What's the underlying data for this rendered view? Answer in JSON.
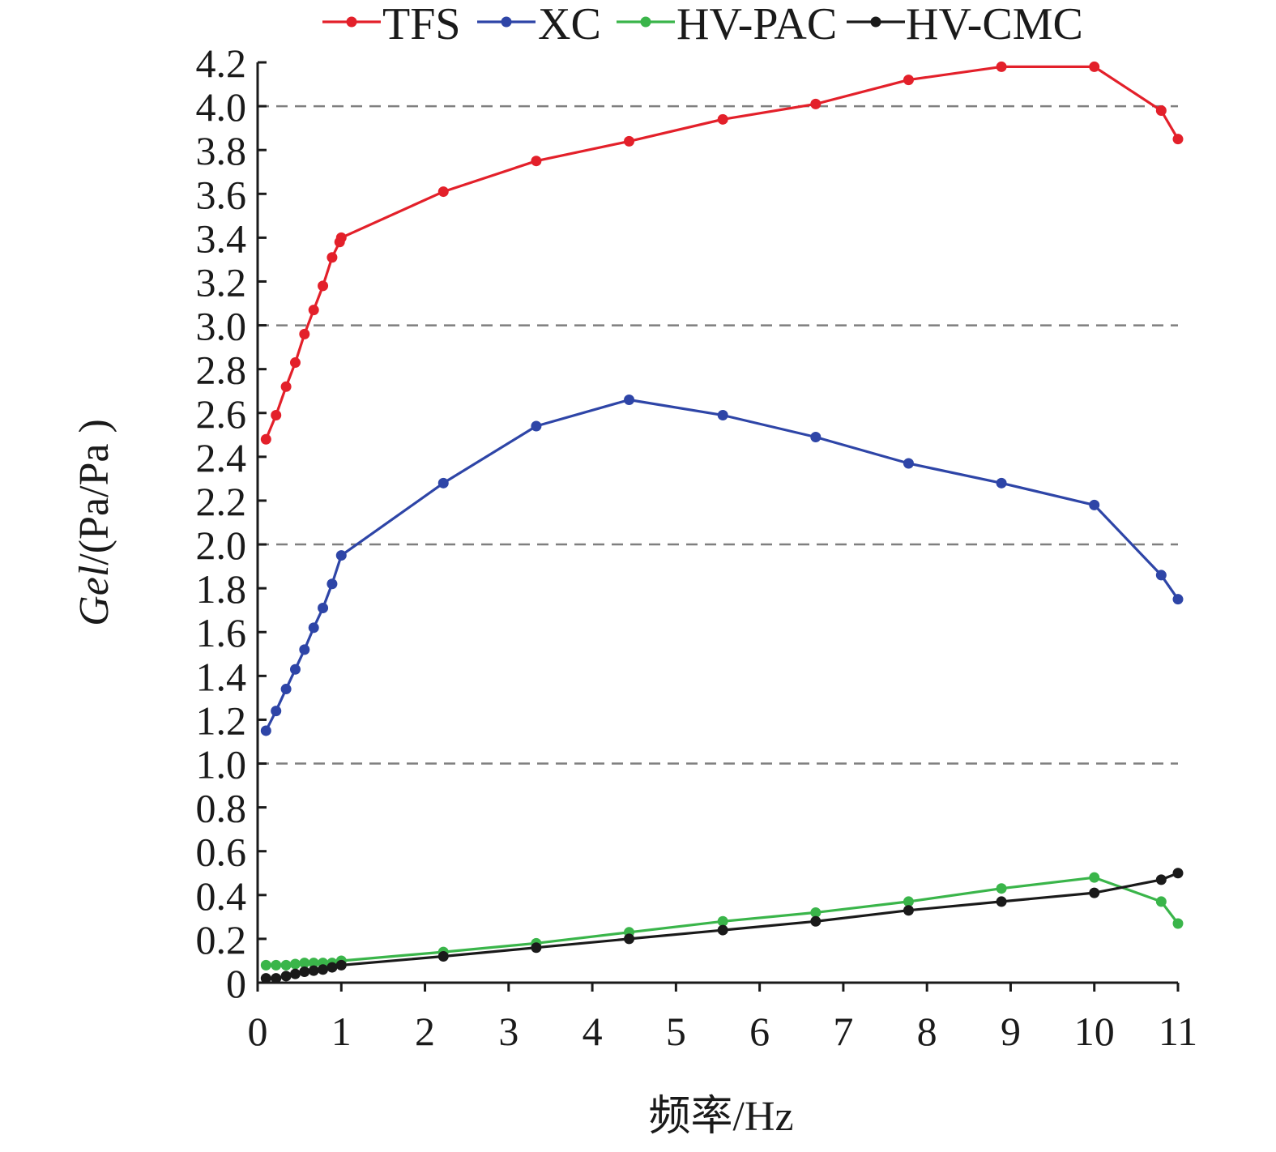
{
  "chart_data": {
    "type": "line",
    "xlabel": "频率/Hz",
    "ylabel_italic": "Gel",
    "ylabel_rest": "/(Pa/Pa )",
    "xlim": [
      0,
      11
    ],
    "ylim": [
      0,
      4.2
    ],
    "x_ticks": [
      0,
      1,
      2,
      3,
      4,
      5,
      6,
      7,
      8,
      9,
      10,
      11
    ],
    "y_ticks": [
      0,
      0.2,
      0.4,
      0.6,
      0.8,
      1.0,
      1.2,
      1.4,
      1.6,
      1.8,
      2.0,
      2.2,
      2.4,
      2.6,
      2.8,
      3.0,
      3.2,
      3.4,
      3.6,
      3.8,
      4.0,
      4.2
    ],
    "y_tick_labels": [
      "0",
      "0.2",
      "0.4",
      "0.6",
      "0.8",
      "1.0",
      "1.2",
      "1.4",
      "1.6",
      "1.8",
      "2.0",
      "2.2",
      "2.4",
      "2.6",
      "2.8",
      "3.0",
      "3.2",
      "3.4",
      "3.6",
      "3.8",
      "4.0",
      "4.2"
    ],
    "gridlines_y": [
      1.0,
      2.0,
      3.0,
      4.0
    ],
    "legend_position": "top",
    "series": [
      {
        "name": "TFS",
        "color": "#e3202a",
        "x": [
          0.1,
          0.22,
          0.34,
          0.45,
          0.56,
          0.67,
          0.78,
          0.89,
          0.98,
          1.0,
          2.22,
          3.33,
          4.44,
          5.56,
          6.67,
          7.78,
          8.89,
          10.0,
          10.8,
          11.0
        ],
        "y": [
          2.48,
          2.59,
          2.72,
          2.83,
          2.96,
          3.07,
          3.18,
          3.31,
          3.38,
          3.4,
          3.61,
          3.75,
          3.84,
          3.94,
          4.01,
          4.12,
          4.18,
          4.18,
          3.98,
          3.85
        ]
      },
      {
        "name": "XC",
        "color": "#2e45a7",
        "x": [
          0.1,
          0.22,
          0.34,
          0.45,
          0.56,
          0.67,
          0.78,
          0.89,
          1.0,
          2.22,
          3.33,
          4.44,
          5.56,
          6.67,
          7.78,
          8.89,
          10.0,
          10.8,
          11.0
        ],
        "y": [
          1.15,
          1.24,
          1.34,
          1.43,
          1.52,
          1.62,
          1.71,
          1.82,
          1.95,
          2.28,
          2.54,
          2.66,
          2.59,
          2.49,
          2.37,
          2.28,
          2.18,
          1.86,
          1.75
        ]
      },
      {
        "name": "HV-PAC",
        "color": "#3ab54a",
        "x": [
          0.1,
          0.22,
          0.34,
          0.45,
          0.56,
          0.67,
          0.78,
          0.89,
          1.0,
          2.22,
          3.33,
          4.44,
          5.56,
          6.67,
          7.78,
          8.89,
          10.0,
          10.8,
          11.0
        ],
        "y": [
          0.08,
          0.08,
          0.08,
          0.085,
          0.09,
          0.09,
          0.09,
          0.09,
          0.1,
          0.14,
          0.18,
          0.23,
          0.28,
          0.32,
          0.37,
          0.43,
          0.48,
          0.37,
          0.27
        ]
      },
      {
        "name": "HV-CMC",
        "color": "#1a1a1a",
        "x": [
          0.1,
          0.22,
          0.34,
          0.45,
          0.56,
          0.67,
          0.78,
          0.89,
          1.0,
          2.22,
          3.33,
          4.44,
          5.56,
          6.67,
          7.78,
          8.89,
          10.0,
          10.8,
          11.0
        ],
        "y": [
          0.02,
          0.02,
          0.03,
          0.04,
          0.05,
          0.055,
          0.06,
          0.07,
          0.08,
          0.12,
          0.16,
          0.2,
          0.24,
          0.28,
          0.33,
          0.37,
          0.41,
          0.47,
          0.5
        ]
      }
    ]
  }
}
